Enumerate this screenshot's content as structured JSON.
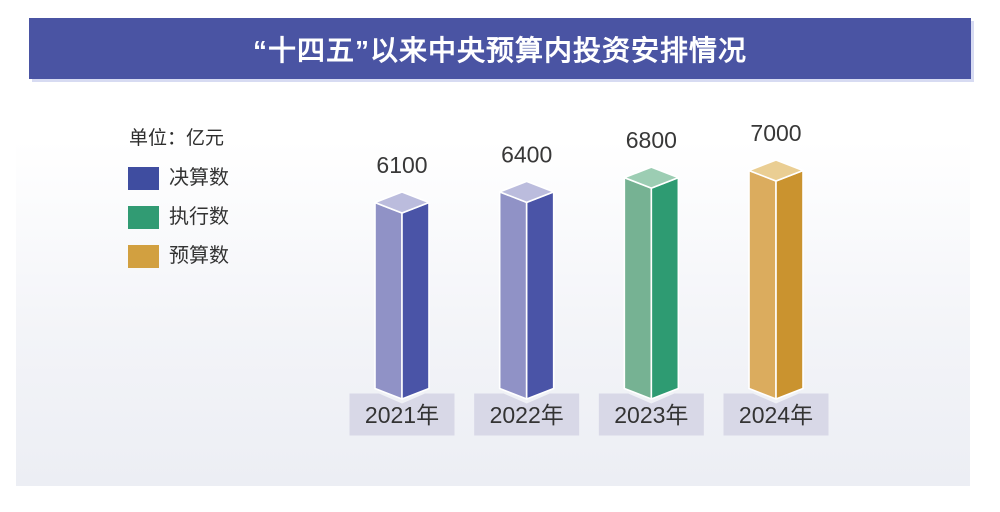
{
  "style": {
    "banner_color": "#4A54A3",
    "banner_shadow_color": "#D7DBF2",
    "panel_bottom_color": "#ECEEF4",
    "pedestal_color": "#D8D8E7",
    "value_label_color": "#383838",
    "category_label_color": "#333333",
    "title_color": "#FFFFFF"
  },
  "chart_data": {
    "type": "bar",
    "title": "“十四五”以来中央预算内投资安排情况",
    "unit_label": "单位：亿元",
    "categories": [
      "2021年",
      "2022年",
      "2023年",
      "2024年"
    ],
    "values": [
      6100,
      6400,
      6800,
      7000
    ],
    "bar_series": [
      "决算数",
      "决算数",
      "执行数",
      "预算数"
    ],
    "series": [
      {
        "name": "决算数",
        "color": "#3F4DA0",
        "face_left": "#9092C6",
        "face_right": "#4A54A7",
        "face_top": "#BBBCDD"
      },
      {
        "name": "执行数",
        "color": "#319B73",
        "face_left": "#76B293",
        "face_right": "#2E9B72",
        "face_top": "#9CCDB3"
      },
      {
        "name": "预算数",
        "color": "#D2A040",
        "face_left": "#DBAC5E",
        "face_right": "#CA932F",
        "face_top": "#EACE93"
      }
    ],
    "value_labels": true,
    "grid": false,
    "legend_position": "left",
    "bar_style": "3d-prism",
    "ylim": [
      0,
      7000
    ]
  }
}
